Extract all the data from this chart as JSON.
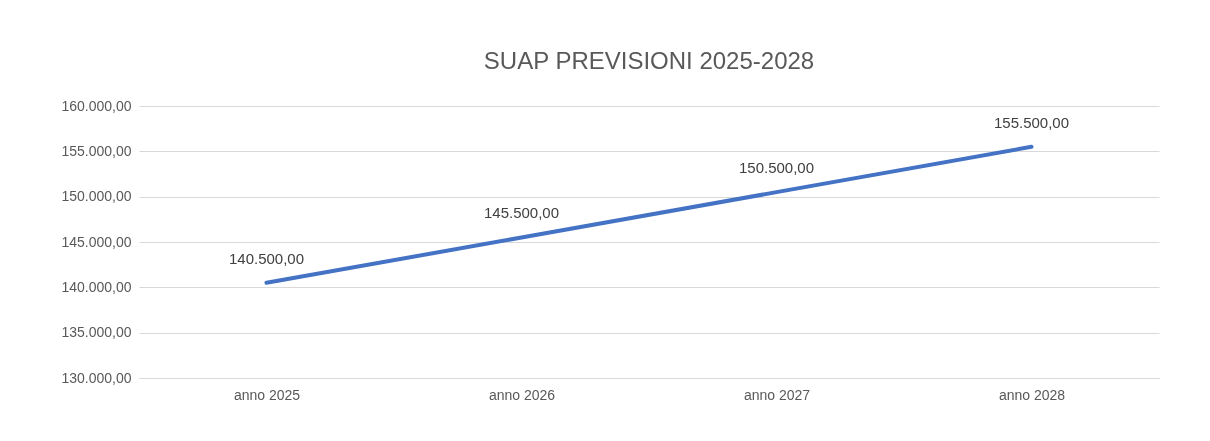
{
  "chart_data": {
    "type": "line",
    "title": "SUAP PREVISIONI 2025-2028",
    "categories": [
      "anno 2025",
      "anno 2026",
      "anno 2027",
      "anno 2028"
    ],
    "series": [
      {
        "color": "#4472c4",
        "values": [
          140500,
          145500,
          150500,
          155500
        ],
        "value_labels": [
          "140.500,00",
          "145.500,00",
          "150.500,00",
          "155.500,00"
        ]
      }
    ],
    "ylim": [
      130000,
      160000
    ],
    "yticks": [
      {
        "value": 130000,
        "label": "130.000,00"
      },
      {
        "value": 135000,
        "label": "135.000,00"
      },
      {
        "value": 140000,
        "label": "140.000,00"
      },
      {
        "value": 145000,
        "label": "145.000,00"
      },
      {
        "value": 150000,
        "label": "150.000,00"
      },
      {
        "value": 155000,
        "label": "155.000,00"
      },
      {
        "value": 160000,
        "label": "160.000,00"
      }
    ],
    "grid": "y",
    "marker": "none",
    "line_style": "solid"
  }
}
